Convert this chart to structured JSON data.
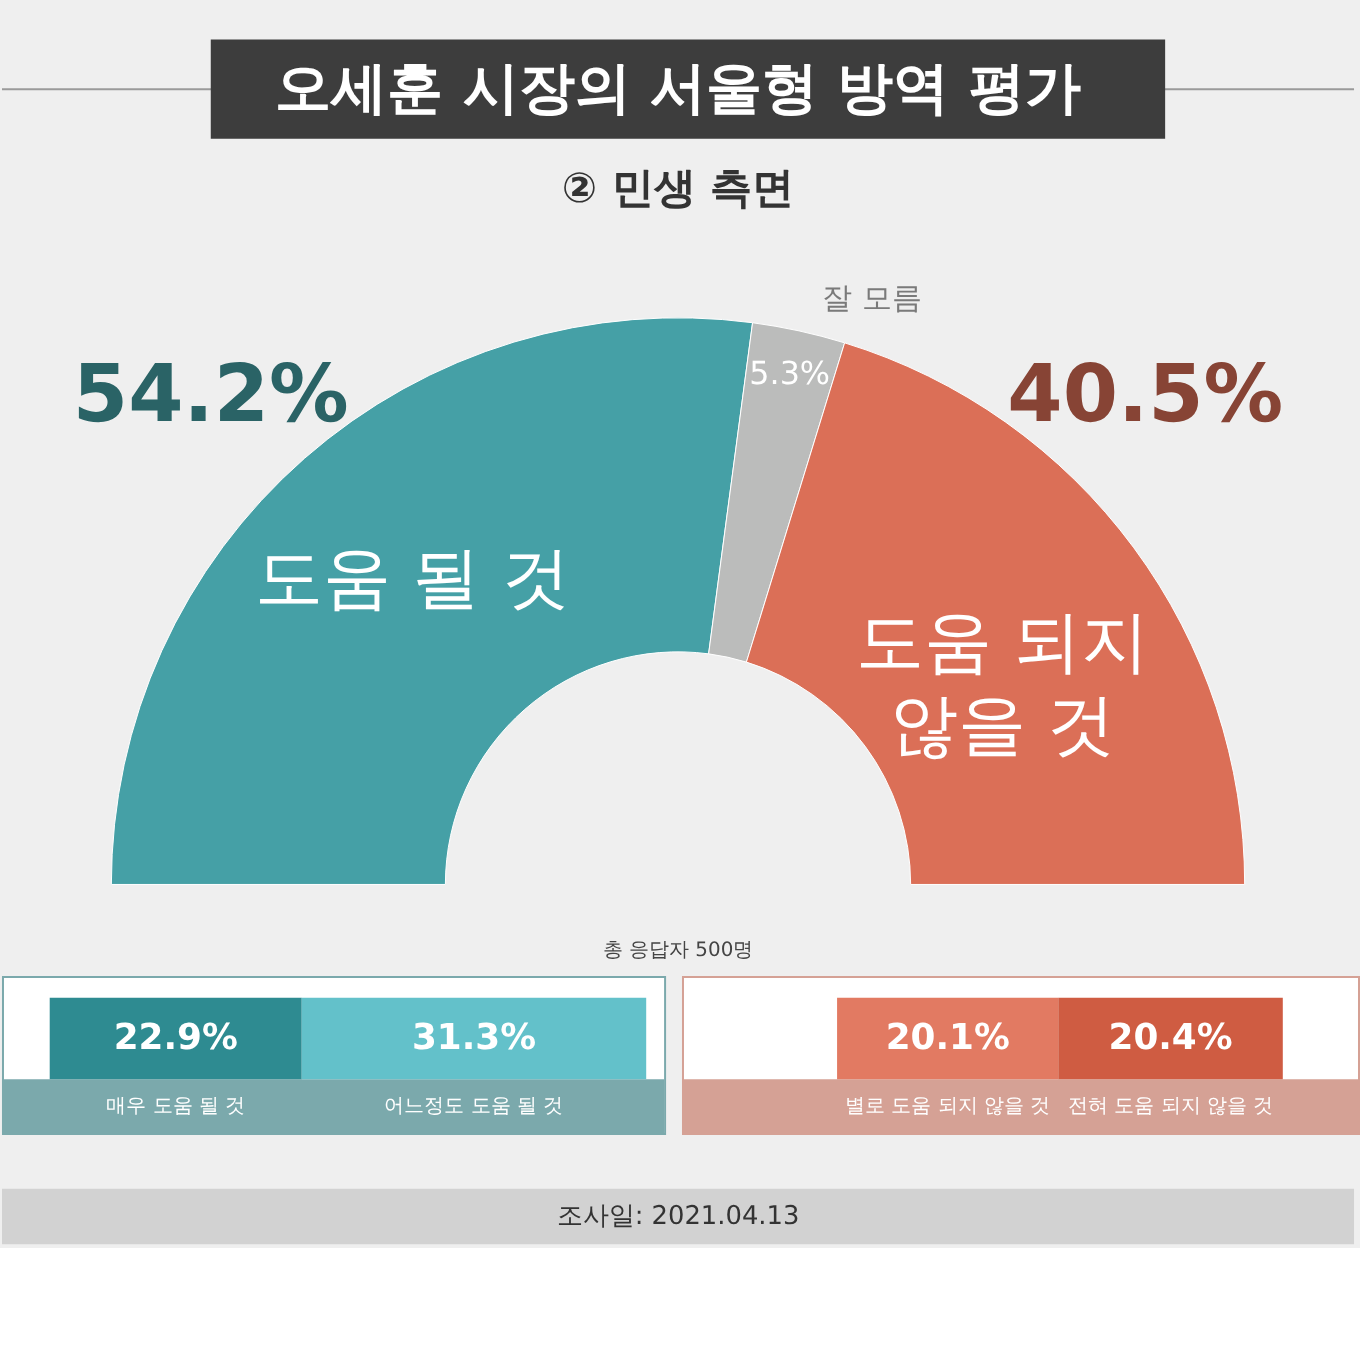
{
  "chart_data": [
    {
      "type": "donut",
      "title": "오세훈 시장의 서울형 방역 평가",
      "subtitle": "② 민생 측면",
      "categories": [
        "도움 될 것",
        "잘 모름",
        "도움 되지 않을 것"
      ],
      "values": [
        54.2,
        5.3,
        40.5
      ],
      "colors": [
        "#45a0a6",
        "#bbbcbb",
        "#db6f57"
      ],
      "value_labels": [
        "54.2%",
        "5.3%",
        "40.5%"
      ],
      "annotations": [
        "총 응답자 500명",
        "조사일: 2021.04.13"
      ]
    },
    {
      "type": "bar",
      "orientation": "horizontal",
      "stacked": true,
      "categories": [
        null
      ],
      "series": [
        {
          "name": "매우 도움 될 것",
          "color": "#2e8b91",
          "values": [
            22.9
          ],
          "value_labels": [
            "22.9%"
          ]
        },
        {
          "name": "어느정도 도움 될 것",
          "color": "#63c1ca",
          "values": [
            31.3
          ],
          "value_labels": [
            "31.3%"
          ]
        }
      ]
    },
    {
      "type": "bar",
      "orientation": "horizontal",
      "stacked": true,
      "categories": [
        null
      ],
      "series": [
        {
          "name": "별로 도움 되지 않을 것",
          "color": "#e27a62",
          "values": [
            20.1
          ],
          "value_labels": [
            "20.1%"
          ]
        },
        {
          "name": "전혀 도움 되지 않을 것",
          "color": "#cf5c42",
          "values": [
            20.4
          ],
          "value_labels": [
            "20.4%"
          ]
        }
      ]
    }
  ]
}
